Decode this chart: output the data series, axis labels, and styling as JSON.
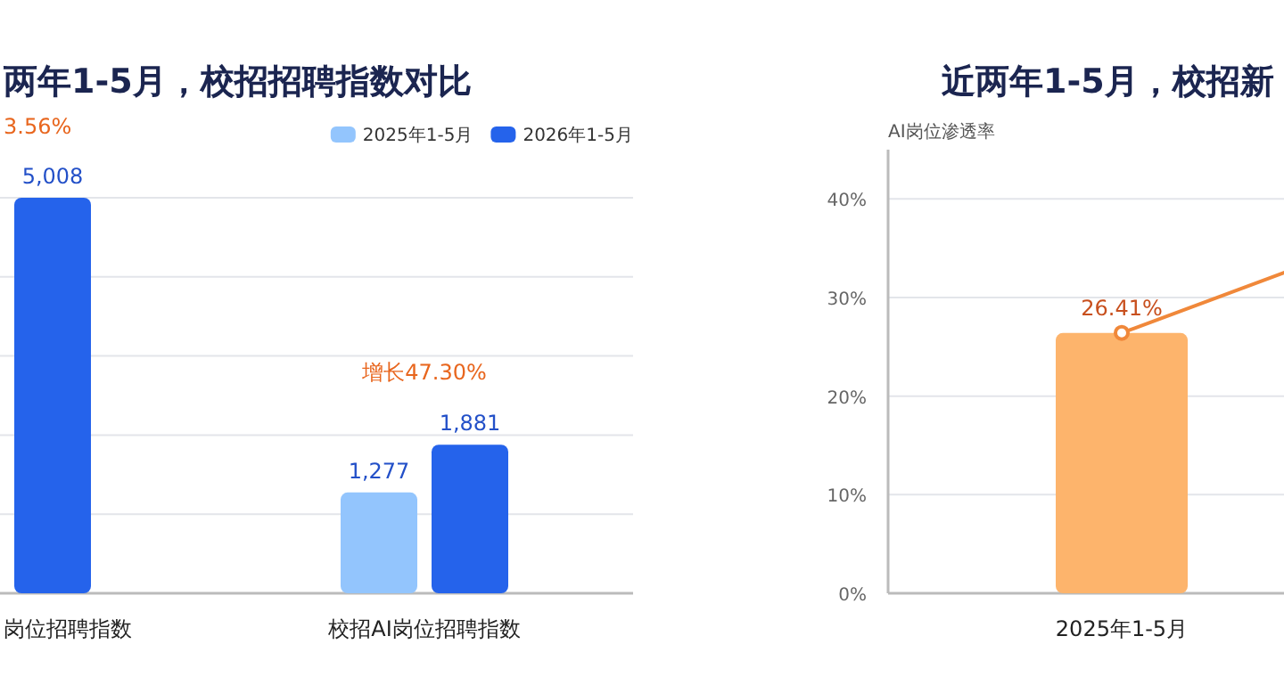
{
  "chart_data": [
    {
      "type": "bar",
      "title": "两年1-5月，校招招聘指数对比",
      "categories": [
        "岗位招聘指数",
        "校招AI岗位招聘指数"
      ],
      "series": [
        {
          "name": "2025年1-5月",
          "color": "#93c5fd",
          "values": [
            null,
            1277
          ],
          "value_labels": [
            null,
            "1,277"
          ]
        },
        {
          "name": "2026年1-5月",
          "color": "#2563eb",
          "values": [
            5008,
            1881
          ],
          "value_labels": [
            "5,008",
            "1,881"
          ]
        }
      ],
      "grid": "y",
      "legend": "top right",
      "annotations": [
        "3.56%",
        "增长47.30%"
      ]
    },
    {
      "type": "bar",
      "title": "近两年1-5月，校招新",
      "ylabel": "AI岗位渗透率",
      "categories": [
        "2025年1-5月",
        null
      ],
      "series": [
        {
          "color": "#fdb46c",
          "values": [
            26.4,
            null
          ]
        },
        {
          "type": "line",
          "color": "#f0883a",
          "marker": "circle",
          "values": [
            26.41,
            44
          ],
          "value_labels": [
            "26.41%",
            null
          ]
        }
      ],
      "ylim": [
        0,
        45
      ],
      "yticks": [
        {
          "value": 0,
          "label": "0%"
        },
        {
          "value": 10,
          "label": "10%"
        },
        {
          "value": 20,
          "label": "20%"
        },
        {
          "value": 30,
          "label": "30%"
        },
        {
          "value": 40,
          "label": "40%"
        }
      ],
      "grid": "y"
    }
  ]
}
